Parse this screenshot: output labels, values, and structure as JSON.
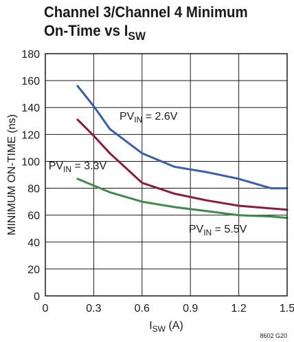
{
  "title": {
    "line1": "Channel 3/Channel 4 Minimum",
    "line2_main": "On-Time vs I",
    "line2_sub": "SW"
  },
  "figure_id": "8602 G20",
  "chart_data": {
    "type": "line",
    "xlabel_main": "I",
    "xlabel_sub": "SW",
    "xlabel_unit": " (A)",
    "ylabel": "MINIMUM ON-TIME (ns)",
    "xlim": [
      0,
      1.5
    ],
    "ylim": [
      0,
      180
    ],
    "xticks": [
      "0",
      "0.3",
      "0.6",
      "0.9",
      "1.2",
      "1.5"
    ],
    "yticks": [
      "0",
      "20",
      "40",
      "60",
      "80",
      "100",
      "120",
      "140",
      "160",
      "180"
    ],
    "grid": true,
    "series": [
      {
        "label_main": "PV",
        "label_sub": "IN",
        "label_rest": " = 2.6V",
        "color": "#3a5ea8",
        "x": [
          0.2,
          0.3,
          0.4,
          0.6,
          0.8,
          1.0,
          1.2,
          1.4,
          1.5
        ],
        "y": [
          156,
          141,
          124,
          106,
          96,
          92,
          87,
          80,
          80
        ]
      },
      {
        "label_main": "PV",
        "label_sub": "IN",
        "label_rest": " = 3.3V",
        "color": "#8b1a3c",
        "x": [
          0.2,
          0.3,
          0.4,
          0.6,
          0.8,
          1.0,
          1.2,
          1.4,
          1.5
        ],
        "y": [
          131,
          119,
          106,
          84,
          76,
          71,
          67,
          65,
          64
        ]
      },
      {
        "label_main": "PV",
        "label_sub": "IN",
        "label_rest": " = 5.5V",
        "color": "#3f8a4a",
        "x": [
          0.2,
          0.3,
          0.4,
          0.6,
          0.8,
          1.0,
          1.2,
          1.4,
          1.5
        ],
        "y": [
          87,
          82,
          77,
          70,
          66,
          63,
          60,
          59,
          58
        ]
      }
    ]
  }
}
